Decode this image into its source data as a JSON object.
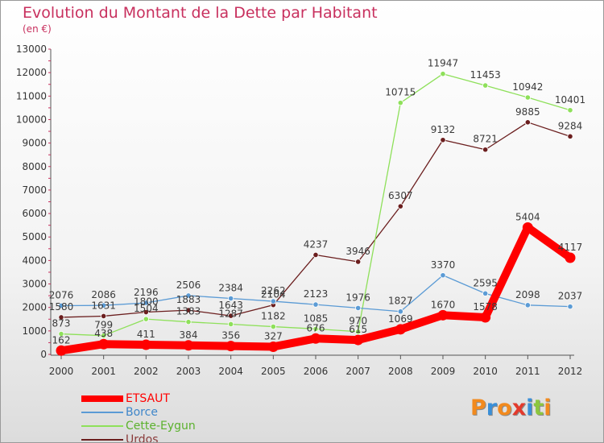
{
  "header": {
    "title": "Evolution du Montant de la Dette par Habitant",
    "subtitle": "(en €)"
  },
  "logo": {
    "text": "Proxiti"
  },
  "colors": {
    "title": "#c8305e",
    "etsaut": "#ff0000",
    "borce": "#5b9bd5",
    "cette_eygun": "#8ee05a",
    "urdos": "#6b1e1e"
  },
  "chart_data": {
    "type": "line",
    "title": "Evolution du Montant de la Dette par Habitant",
    "subtitle": "(en €)",
    "xlabel": "",
    "ylabel": "",
    "x": [
      "2000",
      "2001",
      "2002",
      "2003",
      "2004",
      "2005",
      "2006",
      "2007",
      "2008",
      "2009",
      "2010",
      "2011",
      "2012"
    ],
    "ylim": [
      0,
      13000
    ],
    "yticks": [
      0,
      1000,
      2000,
      3000,
      4000,
      5000,
      6000,
      7000,
      8000,
      9000,
      10000,
      11000,
      12000,
      13000
    ],
    "grid": false,
    "legend": "bottom-left",
    "series": [
      {
        "name": "ETSAUT",
        "color": "#ff0000",
        "values": [
          162,
          438,
          411,
          384,
          356,
          327,
          676,
          615,
          1069,
          1670,
          1578,
          5404,
          4117
        ]
      },
      {
        "name": "Borce",
        "color": "#5b9bd5",
        "values": [
          2076,
          2086,
          2196,
          2506,
          2384,
          2262,
          2123,
          1976,
          1827,
          3370,
          2595,
          2098,
          2037
        ]
      },
      {
        "name": "Cette-Eygun",
        "color": "#8ee05a",
        "values": [
          873,
          799,
          1504,
          1383,
          1287,
          1182,
          1085,
          970,
          10715,
          11947,
          11453,
          10942,
          10401
        ]
      },
      {
        "name": "Urdos",
        "color": "#6b1e1e",
        "values": [
          1580,
          1631,
          1800,
          1883,
          1643,
          2104,
          4237,
          3946,
          6307,
          9132,
          8721,
          9885,
          9284
        ]
      }
    ]
  }
}
